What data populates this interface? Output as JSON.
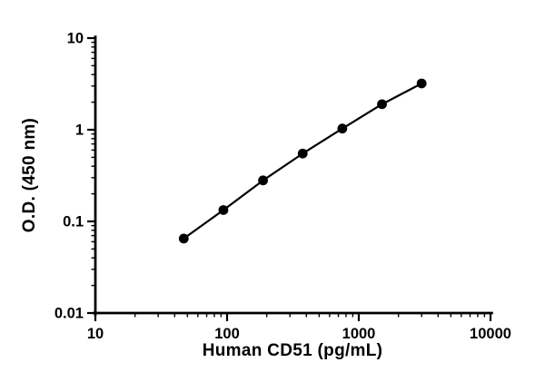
{
  "figure": {
    "background": "#ffffff"
  },
  "chart_data": {
    "type": "scatter",
    "title": "",
    "xlabel": "Human CD51 (pg/mL)",
    "ylabel": "O.D. (450 nm)",
    "xscale": "log",
    "yscale": "log",
    "xlim": [
      10,
      10000
    ],
    "ylim": [
      0.01,
      10
    ],
    "x": [
      46.88,
      93.75,
      187.5,
      375,
      750,
      1500,
      3000
    ],
    "y": [
      0.065,
      0.133,
      0.28,
      0.55,
      1.03,
      1.9,
      3.2
    ],
    "x_ticks": [
      {
        "value": 10,
        "label": "10"
      },
      {
        "value": 100,
        "label": "100"
      },
      {
        "value": 1000,
        "label": "1000"
      },
      {
        "value": 10000,
        "label": "10000"
      }
    ],
    "y_ticks": [
      {
        "value": 0.01,
        "label": "0.01"
      },
      {
        "value": 0.1,
        "label": "0.1"
      },
      {
        "value": 1,
        "label": "1"
      },
      {
        "value": 10,
        "label": "10"
      }
    ],
    "grid": false,
    "legend": "none",
    "marker": "filled-circle",
    "axis_color": "#000000",
    "line_color": "#000000",
    "marker_color": "#000000"
  }
}
